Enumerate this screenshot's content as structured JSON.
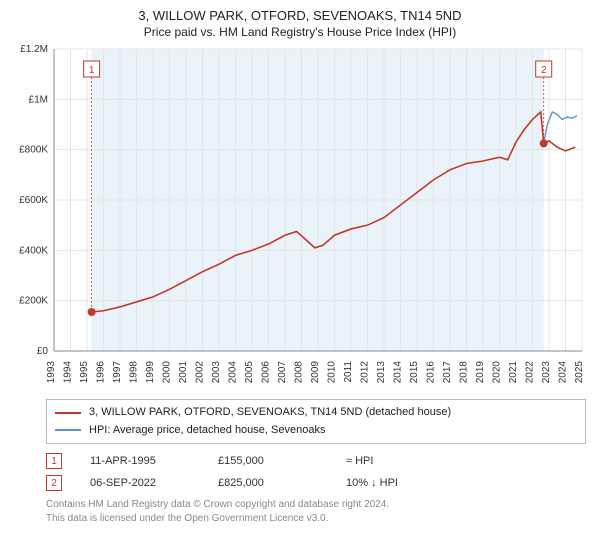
{
  "header": {
    "title": "3, WILLOW PARK, OTFORD, SEVENOAKS, TN14 5ND",
    "subtitle": "Price paid vs. HM Land Registry's House Price Index (HPI)"
  },
  "chart": {
    "type": "line",
    "background_color": "#ffffff",
    "plot_background_color": "#f3f8fc",
    "grid_color": "#e5e5e5",
    "axis_color": "#888888",
    "text_color": "#333333",
    "title_fontsize": 13,
    "label_fontsize": 11,
    "tick_fontsize": 10,
    "x": {
      "min": 1993,
      "max": 2025,
      "tick_step": 1,
      "ticks": [
        1993,
        1994,
        1995,
        1996,
        1997,
        1998,
        1999,
        2000,
        2001,
        2002,
        2003,
        2004,
        2005,
        2006,
        2007,
        2008,
        2009,
        2010,
        2011,
        2012,
        2013,
        2014,
        2015,
        2016,
        2017,
        2018,
        2019,
        2020,
        2021,
        2022,
        2023,
        2024,
        2025
      ]
    },
    "y": {
      "min": 0,
      "max": 1200000,
      "tick_step": 200000,
      "ticks": [
        0,
        200000,
        400000,
        600000,
        800000,
        1000000,
        1200000
      ],
      "tick_labels": [
        "£0",
        "£200K",
        "£400K",
        "£600K",
        "£800K",
        "£1M",
        "£1.2M"
      ]
    },
    "plot_bands": [
      {
        "from": 1995.28,
        "to": 2022.68,
        "color": "#eaf2fa"
      }
    ],
    "series": [
      {
        "name": "3, WILLOW PARK, OTFORD, SEVENOAKS, TN14 5ND (detached house)",
        "color": "#c0392b",
        "line_width": 1.6,
        "data": [
          [
            1995.28,
            155000
          ],
          [
            1996,
            160000
          ],
          [
            1997,
            175000
          ],
          [
            1998,
            195000
          ],
          [
            1999,
            215000
          ],
          [
            2000,
            245000
          ],
          [
            2001,
            280000
          ],
          [
            2002,
            315000
          ],
          [
            2003,
            345000
          ],
          [
            2004,
            380000
          ],
          [
            2005,
            400000
          ],
          [
            2006,
            425000
          ],
          [
            2007,
            460000
          ],
          [
            2007.7,
            475000
          ],
          [
            2008.3,
            440000
          ],
          [
            2008.8,
            410000
          ],
          [
            2009.3,
            420000
          ],
          [
            2010,
            460000
          ],
          [
            2011,
            485000
          ],
          [
            2012,
            500000
          ],
          [
            2013,
            530000
          ],
          [
            2014,
            580000
          ],
          [
            2015,
            630000
          ],
          [
            2016,
            680000
          ],
          [
            2017,
            720000
          ],
          [
            2018,
            745000
          ],
          [
            2019,
            755000
          ],
          [
            2020,
            770000
          ],
          [
            2020.5,
            760000
          ],
          [
            2021,
            830000
          ],
          [
            2021.5,
            880000
          ],
          [
            2022,
            920000
          ],
          [
            2022.5,
            950000
          ],
          [
            2022.68,
            825000
          ],
          [
            2023,
            835000
          ],
          [
            2023.5,
            810000
          ],
          [
            2024,
            795000
          ],
          [
            2024.6,
            810000
          ]
        ]
      },
      {
        "name": "HPI: Average price, detached house, Sevenoaks",
        "color": "#5b8fd6",
        "line_width": 1.4,
        "data": [
          [
            2022.68,
            825000
          ],
          [
            2022.9,
            900000
          ],
          [
            2023.2,
            950000
          ],
          [
            2023.5,
            940000
          ],
          [
            2023.8,
            920000
          ],
          [
            2024.1,
            930000
          ],
          [
            2024.4,
            925000
          ],
          [
            2024.7,
            935000
          ]
        ]
      }
    ],
    "sale_markers": [
      {
        "idx": 1,
        "x": 1995.28,
        "y": 155000,
        "color": "#c0392b"
      },
      {
        "idx": 2,
        "x": 2022.68,
        "y": 825000,
        "color": "#c0392b"
      }
    ]
  },
  "legend": {
    "items": [
      {
        "color": "#c0392b",
        "label": "3, WILLOW PARK, OTFORD, SEVENOAKS, TN14 5ND (detached house)"
      },
      {
        "color": "#5b8fd6",
        "label": "HPI: Average price, detached house, Sevenoaks"
      }
    ]
  },
  "markers_table": {
    "rows": [
      {
        "idx": "1",
        "date": "11-APR-1995",
        "price": "£155,000",
        "vs_hpi": "≈ HPI"
      },
      {
        "idx": "2",
        "date": "06-SEP-2022",
        "price": "£825,000",
        "vs_hpi": "10% ↓ HPI"
      }
    ]
  },
  "footer": {
    "line1": "Contains HM Land Registry data © Crown copyright and database right 2024.",
    "line2": "This data is licensed under the Open Government Licence v3.0."
  }
}
